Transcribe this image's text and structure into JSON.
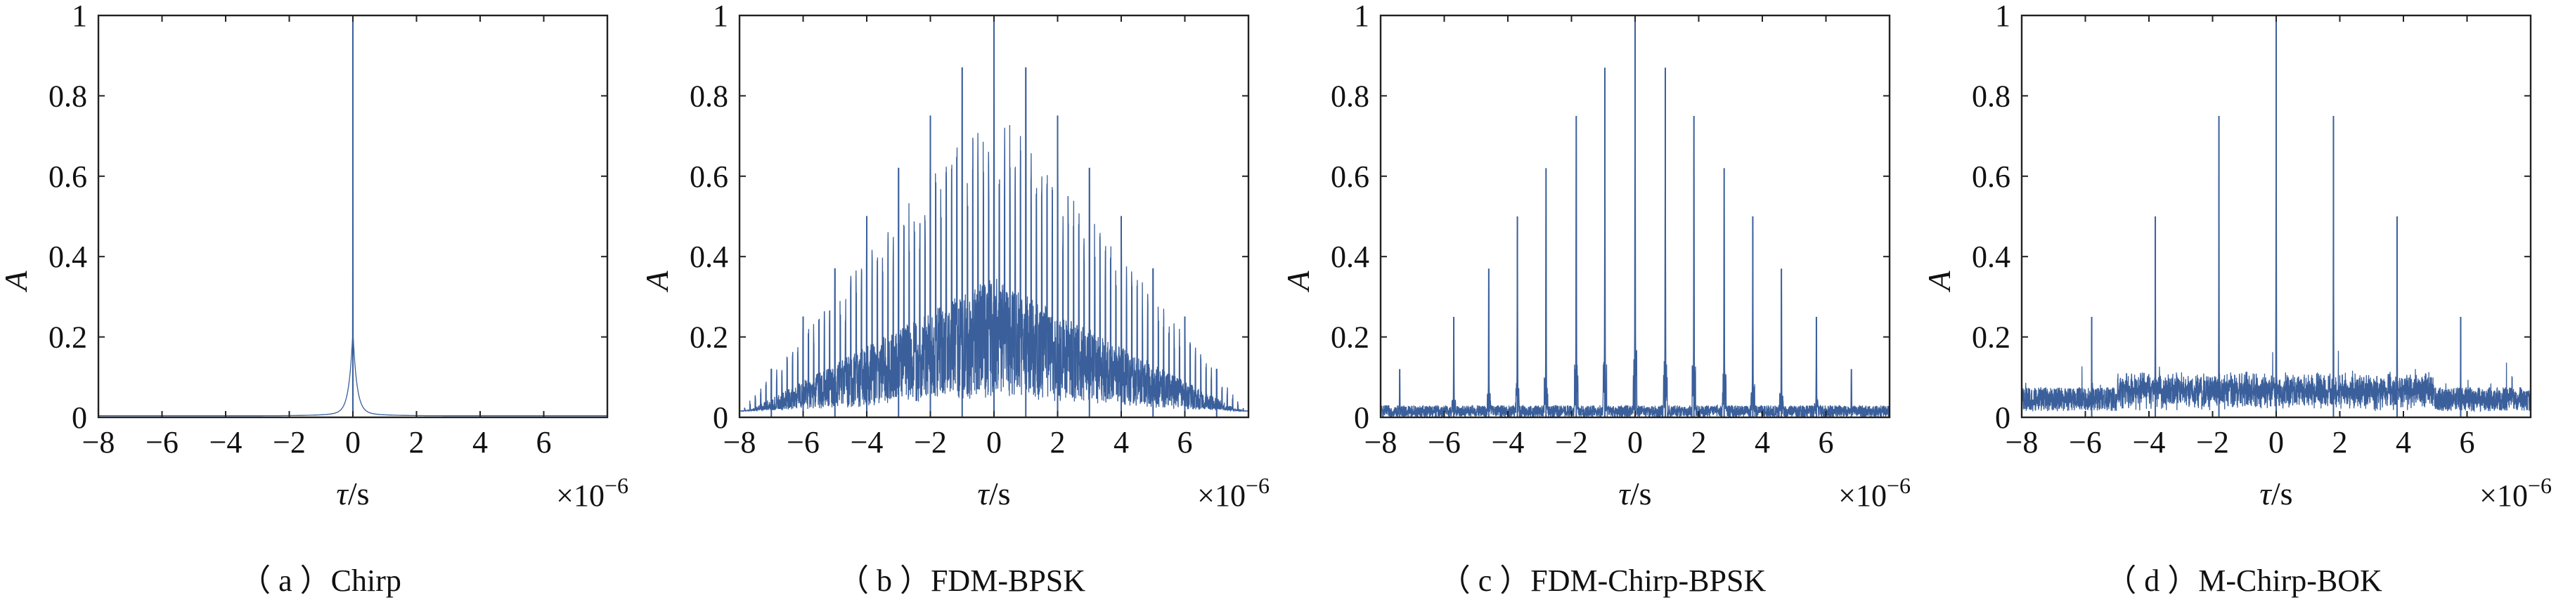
{
  "figure": {
    "background": "#ffffff",
    "line_color": "#3a5f9b",
    "panels": [
      {
        "caption": "（ a ）Chirp"
      },
      {
        "caption": "（ b ）FDM-BPSK"
      },
      {
        "caption": "（ c ）FDM-Chirp-BPSK"
      },
      {
        "caption": "（ d ）M-Chirp-BOK"
      }
    ]
  },
  "chart_data": [
    {
      "type": "line",
      "pattern": "single-peak",
      "title": "",
      "xlabel": "τ/s",
      "ylabel": "A",
      "x_exponent_label": "×10",
      "x_exponent_power": "−6",
      "xlim": [
        -8,
        8
      ],
      "ylim": [
        0,
        1
      ],
      "xticks": [
        -8,
        -6,
        -4,
        -2,
        0,
        2,
        4,
        6
      ],
      "xtick_labels": [
        "−8",
        "−6",
        "−4",
        "−2",
        "0",
        "2",
        "4",
        "6"
      ],
      "yticks": [
        0,
        0.2,
        0.4,
        0.6,
        0.8,
        1
      ],
      "ytick_labels": [
        "0",
        "0.2",
        "0.4",
        "0.6",
        "0.8",
        "1"
      ],
      "peaks": [
        {
          "x": 0,
          "y": 1.0
        }
      ],
      "noise_floor": 0.005
    },
    {
      "type": "line",
      "pattern": "dense-triangular",
      "title": "",
      "xlabel": "τ/s",
      "ylabel": "A",
      "x_exponent_label": "×10",
      "x_exponent_power": "−6",
      "xlim": [
        -8,
        8
      ],
      "ylim": [
        0,
        1
      ],
      "xticks": [
        -8,
        -6,
        -4,
        -2,
        0,
        2,
        4,
        6
      ],
      "xtick_labels": [
        "−8",
        "−6",
        "−4",
        "−2",
        "0",
        "2",
        "4",
        "6"
      ],
      "yticks": [
        0,
        0.2,
        0.4,
        0.6,
        0.8,
        1
      ],
      "ytick_labels": [
        "0",
        "0.2",
        "0.4",
        "0.6",
        "0.8",
        "1"
      ],
      "peaks": [
        {
          "x": -7.0,
          "y": 0.12
        },
        {
          "x": -6.0,
          "y": 0.25
        },
        {
          "x": -5.0,
          "y": 0.37
        },
        {
          "x": -4.0,
          "y": 0.5
        },
        {
          "x": -3.0,
          "y": 0.62
        },
        {
          "x": -2.0,
          "y": 0.75
        },
        {
          "x": -1.0,
          "y": 0.87
        },
        {
          "x": 0.0,
          "y": 1.0
        },
        {
          "x": 1.0,
          "y": 0.87
        },
        {
          "x": 2.0,
          "y": 0.75
        },
        {
          "x": 3.0,
          "y": 0.62
        },
        {
          "x": 4.0,
          "y": 0.5
        },
        {
          "x": 5.0,
          "y": 0.37
        },
        {
          "x": 6.0,
          "y": 0.25
        },
        {
          "x": 7.0,
          "y": 0.12
        }
      ],
      "secondary_spacing": 0.1667,
      "noise_floor": 0.12
    },
    {
      "type": "line",
      "pattern": "comb",
      "title": "",
      "xlabel": "τ/s",
      "ylabel": "A",
      "x_exponent_label": "×10",
      "x_exponent_power": "−6",
      "xlim": [
        -8,
        8
      ],
      "ylim": [
        0,
        1
      ],
      "xticks": [
        -8,
        -6,
        -4,
        -2,
        0,
        2,
        4,
        6
      ],
      "xtick_labels": [
        "−8",
        "−6",
        "−4",
        "−2",
        "0",
        "2",
        "4",
        "6"
      ],
      "yticks": [
        0,
        0.2,
        0.4,
        0.6,
        0.8,
        1
      ],
      "ytick_labels": [
        "0",
        "0.2",
        "0.4",
        "0.6",
        "0.8",
        "1"
      ],
      "peaks": [
        {
          "x": -7.4,
          "y": 0.12
        },
        {
          "x": -5.7,
          "y": 0.25
        },
        {
          "x": -4.6,
          "y": 0.37
        },
        {
          "x": -3.7,
          "y": 0.5
        },
        {
          "x": -2.8,
          "y": 0.62
        },
        {
          "x": -1.85,
          "y": 0.75
        },
        {
          "x": -0.95,
          "y": 0.87
        },
        {
          "x": 0.0,
          "y": 1.0
        },
        {
          "x": 0.95,
          "y": 0.87
        },
        {
          "x": 1.85,
          "y": 0.75
        },
        {
          "x": 2.8,
          "y": 0.62
        },
        {
          "x": 3.7,
          "y": 0.5
        },
        {
          "x": 4.6,
          "y": 0.37
        },
        {
          "x": 5.7,
          "y": 0.25
        },
        {
          "x": 6.8,
          "y": 0.12
        }
      ],
      "noise_floor": 0.03
    },
    {
      "type": "line",
      "pattern": "sparse",
      "title": "",
      "xlabel": "τ/s",
      "ylabel": "A",
      "x_exponent_label": "×10",
      "x_exponent_power": "−6",
      "xlim": [
        -8,
        8
      ],
      "ylim": [
        0,
        1
      ],
      "xticks": [
        -8,
        -6,
        -4,
        -2,
        0,
        2,
        4,
        6
      ],
      "xtick_labels": [
        "−8",
        "−6",
        "−4",
        "−2",
        "0",
        "2",
        "4",
        "6"
      ],
      "yticks": [
        0,
        0.2,
        0.4,
        0.6,
        0.8,
        1
      ],
      "ytick_labels": [
        "0",
        "0.2",
        "0.4",
        "0.6",
        "0.8",
        "1"
      ],
      "peaks": [
        {
          "x": -5.8,
          "y": 0.25
        },
        {
          "x": -3.8,
          "y": 0.5
        },
        {
          "x": -1.8,
          "y": 0.75
        },
        {
          "x": 0.0,
          "y": 1.0
        },
        {
          "x": 1.8,
          "y": 0.75
        },
        {
          "x": 3.8,
          "y": 0.5
        },
        {
          "x": 5.8,
          "y": 0.25
        }
      ],
      "noise_floor": 0.06
    }
  ]
}
